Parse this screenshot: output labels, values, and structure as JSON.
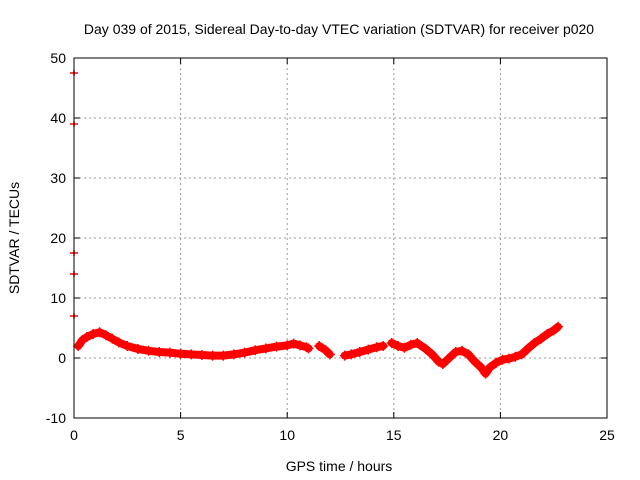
{
  "chart_data": {
    "type": "scatter",
    "title": "Day 039 of 2015, Sidereal Day-to-day VTEC variation (SDTVAR) for receiver p020",
    "xlabel": "GPS time / hours",
    "ylabel": "SDTVAR / TECUs",
    "xlim": [
      0,
      25
    ],
    "ylim": [
      -10,
      50
    ],
    "xticks": [
      0,
      5,
      10,
      15,
      20,
      25
    ],
    "yticks": [
      -10,
      0,
      10,
      20,
      30,
      40,
      50
    ],
    "xtick_labels": [
      "0",
      "5",
      "10",
      "15",
      "20",
      "25"
    ],
    "ytick_labels": [
      "-10",
      "0",
      "10",
      "20",
      "30",
      "40",
      "50"
    ],
    "grid": true,
    "legend": "none",
    "series_color": "#ff0000",
    "series": [
      {
        "name": "SDTVAR",
        "marker": "plus",
        "segments": [
          [
            [
              0.2,
              2.0
            ],
            [
              0.4,
              3.0
            ],
            [
              0.6,
              3.5
            ],
            [
              0.9,
              4.0
            ],
            [
              1.2,
              4.3
            ],
            [
              1.5,
              3.8
            ],
            [
              1.8,
              3.2
            ],
            [
              2.1,
              2.6
            ],
            [
              2.5,
              2.0
            ],
            [
              3.0,
              1.5
            ],
            [
              3.5,
              1.2
            ],
            [
              4.0,
              1.0
            ],
            [
              4.5,
              0.9
            ],
            [
              5.0,
              0.7
            ],
            [
              5.5,
              0.6
            ],
            [
              6.0,
              0.5
            ],
            [
              6.5,
              0.4
            ],
            [
              7.0,
              0.4
            ],
            [
              7.5,
              0.6
            ],
            [
              8.0,
              0.9
            ],
            [
              8.5,
              1.3
            ],
            [
              9.0,
              1.6
            ],
            [
              9.5,
              1.9
            ],
            [
              10.0,
              2.1
            ],
            [
              10.3,
              2.4
            ],
            [
              10.6,
              2.1
            ],
            [
              10.9,
              1.8
            ],
            [
              11.0,
              1.6
            ]
          ],
          [
            [
              11.5,
              2.0
            ],
            [
              11.8,
              1.3
            ],
            [
              12.0,
              0.6
            ]
          ],
          [
            [
              12.7,
              0.4
            ],
            [
              13.0,
              0.6
            ],
            [
              13.4,
              1.0
            ],
            [
              13.8,
              1.4
            ],
            [
              14.2,
              1.8
            ],
            [
              14.5,
              2.0
            ]
          ],
          [
            [
              14.9,
              2.5
            ],
            [
              15.2,
              2.0
            ],
            [
              15.5,
              1.7
            ],
            [
              15.8,
              2.2
            ],
            [
              16.1,
              2.5
            ],
            [
              16.5,
              1.5
            ],
            [
              16.8,
              0.6
            ],
            [
              17.1,
              -0.6
            ],
            [
              17.3,
              -1.0
            ],
            [
              17.6,
              0.0
            ],
            [
              17.9,
              1.0
            ],
            [
              18.2,
              1.2
            ],
            [
              18.5,
              0.6
            ],
            [
              18.8,
              -0.6
            ],
            [
              19.1,
              -1.6
            ],
            [
              19.3,
              -2.6
            ],
            [
              19.5,
              -1.6
            ],
            [
              19.8,
              -0.8
            ],
            [
              20.1,
              -0.3
            ],
            [
              20.4,
              -0.1
            ],
            [
              20.7,
              0.2
            ],
            [
              21.0,
              0.6
            ],
            [
              21.3,
              1.6
            ],
            [
              21.6,
              2.5
            ],
            [
              21.9,
              3.2
            ],
            [
              22.2,
              4.0
            ],
            [
              22.5,
              4.6
            ],
            [
              22.7,
              5.2
            ]
          ]
        ]
      }
    ],
    "left_axis_marks": [
      47.5,
      39.0,
      17.5,
      14.0,
      7.0
    ]
  }
}
